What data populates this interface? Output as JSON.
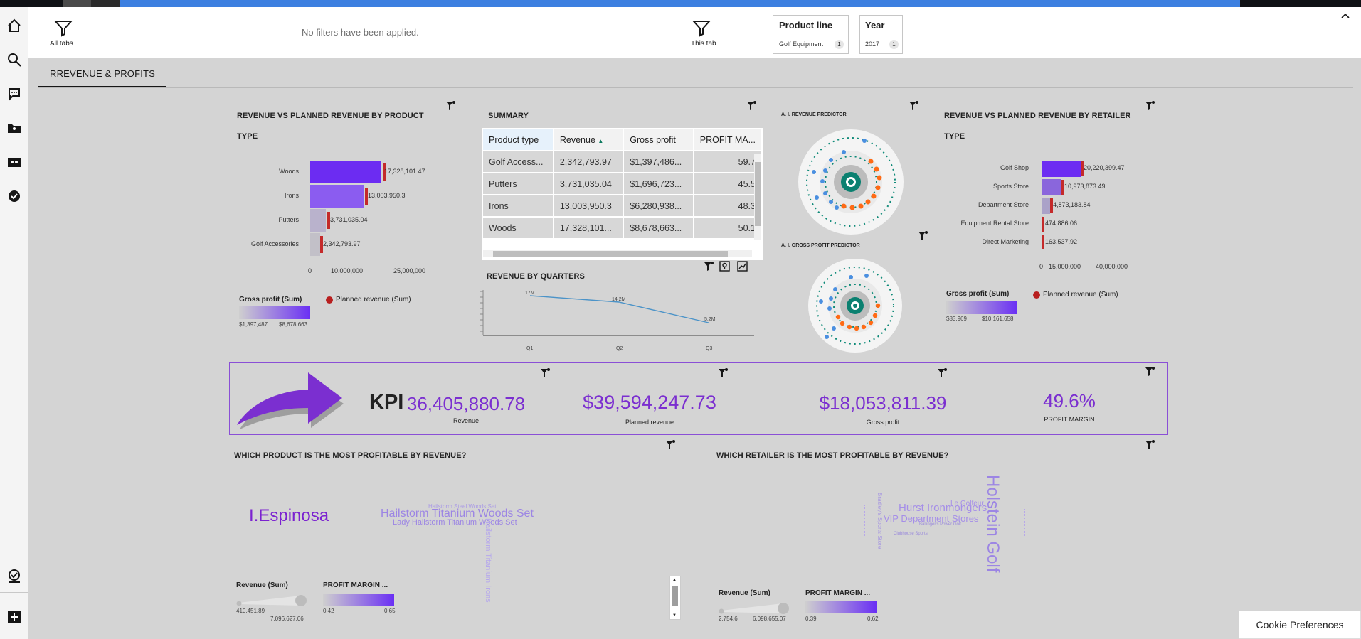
{
  "filterbar": {
    "all_tabs_label": "All tabs",
    "no_filters": "No filters have been applied.",
    "this_tab_label": "This tab",
    "chips": [
      {
        "title": "Product line",
        "value": "Golf Equipment",
        "count": "1"
      },
      {
        "title": "Year",
        "value": "2017",
        "count": "1"
      }
    ]
  },
  "tab": {
    "label": "RREVENUE & PROFITS"
  },
  "widget1": {
    "title_line1": "REVENUE  VS PLANNED REVENUE BY PRODUCT",
    "title_line2": "TYPE",
    "bars": [
      {
        "label": "Woods",
        "value": "17,328,101.47"
      },
      {
        "label": "Irons",
        "value": "13,003,950.3"
      },
      {
        "label": "Putters",
        "value": "3,731,035.04"
      },
      {
        "label": "Golf Accessories",
        "value": "2,342,793.97"
      }
    ],
    "axis": [
      "0",
      "10,000,000",
      "25,000,000"
    ],
    "legend_gross": "Gross profit (Sum)",
    "legend_min": "$1,397,487",
    "legend_max": "$8,678,663",
    "legend_planned": "Planned revenue (Sum)"
  },
  "summary": {
    "title": "SUMMARY",
    "headers": [
      "Product type",
      "Revenue",
      "Gross profit",
      "PROFIT MA..."
    ],
    "rows": [
      [
        "Golf Access...",
        "2,342,793.97",
        "$1,397,486...",
        "59.7"
      ],
      [
        "Putters",
        "3,731,035.04",
        "$1,696,723...",
        "45.5"
      ],
      [
        "Irons",
        "13,003,950.3",
        "$6,280,938...",
        "48.3"
      ],
      [
        "Woods",
        "17,328,101...",
        "$8,678,663...",
        "50.1"
      ]
    ]
  },
  "quarters": {
    "title": "REVENUE BY QUARTERS",
    "points": [
      {
        "q": "Q1",
        "label": "17M"
      },
      {
        "q": "Q2",
        "label": "14.2M"
      },
      {
        "q": "Q3",
        "label": "5.2M"
      }
    ]
  },
  "predictors": {
    "revenue_title": "A. I. REVENUE PREDICTOR",
    "gross_title": "A. I. GROSS PROFIT PREDICTOR"
  },
  "widget2": {
    "title_line1": "REVENUE  VS PLANNED REVENUE BY RETAILER",
    "title_line2": "TYPE",
    "bars": [
      {
        "label": "Golf Shop",
        "value": "20,220,399.47"
      },
      {
        "label": "Sports Store",
        "value": "10,973,873.49"
      },
      {
        "label": "Department Store",
        "value": "4,873,183.84"
      },
      {
        "label": "Equipment Rental Store",
        "value": "474,886.06"
      },
      {
        "label": "Direct Marketing",
        "value": "163,537.92"
      }
    ],
    "axis": [
      "0",
      "15,000,000",
      "40,000,000"
    ],
    "legend_gross": "Gross profit (Sum)",
    "legend_min": "$83,969",
    "legend_max": "$10,161,658",
    "legend_planned": "Planned revenue (Sum)"
  },
  "kpi": {
    "label": "KPI",
    "items": [
      {
        "value": "36,405,880.78",
        "label": "Revenue"
      },
      {
        "value": "$39,594,247.73",
        "label": "Planned revenue"
      },
      {
        "value": "$18,053,811.39",
        "label": "Gross profit"
      },
      {
        "value": "49.6%",
        "label": "PROFIT MARGIN"
      }
    ]
  },
  "product_cloud": {
    "title": "WHICH PRODUCT IS THE MOST PROFITABLE BY REVENUE?",
    "top": "I.Espinosa",
    "words": [
      "Hailstorm Titanium Woods Set",
      "Lady Hailstorm Titanium Woods Set",
      "Hailstorm Steel Woods Set",
      "Hailstorm Titanium Irons"
    ],
    "legend_size": "Revenue (Sum)",
    "size_min": "410,451.89",
    "size_max": "7,096,627.06",
    "legend_color": "PROFIT MARGIN ...",
    "color_min": "0.42",
    "color_max": "0.65"
  },
  "retailer_cloud": {
    "title": "WHICH RETAILER IS THE MOST PROFITABLE BY REVENUE?",
    "words": [
      "Holstein Golf",
      "Hurst Ironmongers",
      "VIP Department Stores",
      "Le Golfeur",
      "Ballinger's Power Golf",
      "Clubhouse Sports",
      "Bradley's Sports Store"
    ],
    "legend_size": "Revenue (Sum)",
    "size_min": "2,754.6",
    "size_max": "6,098,655.07",
    "legend_color": "PROFIT MARGIN ...",
    "color_min": "0.39",
    "color_max": "0.62"
  },
  "cookie": "Cookie Preferences"
}
